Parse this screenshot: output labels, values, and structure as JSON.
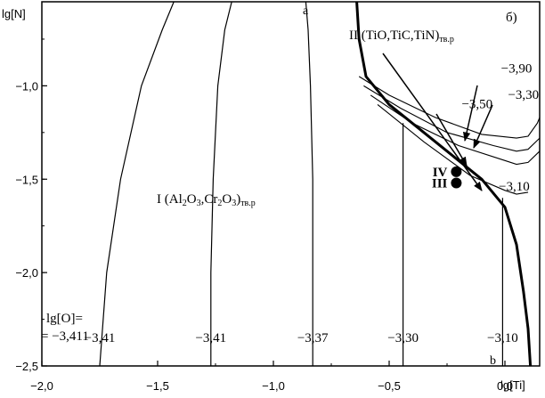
{
  "axes": {
    "x_label": "lg[Ti]",
    "y_label": "lg[N]",
    "xlim": [
      -2.0,
      0.15
    ],
    "ylim": [
      -2.5,
      -0.55
    ],
    "x_ticks": [
      -2.0,
      -1.5,
      -1.0,
      -0.5,
      0.0
    ],
    "x_tick_labels": [
      "−2,0",
      "−1,5",
      "−1,0",
      "−0,5",
      "0,0"
    ],
    "y_ticks": [
      -1.0,
      -1.5,
      -2.0,
      -2.5
    ],
    "y_tick_labels": [
      "−1,0",
      "−1,5",
      "−2,0",
      "−2,5"
    ]
  },
  "panel_label": "б)",
  "boundary": {
    "name": "a–b",
    "top_label": "a",
    "bottom_label": "b",
    "points": [
      [
        -0.64,
        -0.55
      ],
      [
        -0.63,
        -0.75
      ],
      [
        -0.6,
        -0.95
      ],
      [
        -0.5,
        -1.1
      ],
      [
        -0.3,
        -1.3
      ],
      [
        -0.1,
        -1.5
      ],
      [
        0.0,
        -1.65
      ],
      [
        0.05,
        -1.85
      ],
      [
        0.08,
        -2.1
      ],
      [
        0.1,
        -2.3
      ],
      [
        0.11,
        -2.5
      ]
    ]
  },
  "region_I": {
    "label_prefix": "I (Al",
    "sub1": "2",
    "mid1": "O",
    "sub2": "3",
    "mid2": ",Cr",
    "sub3": "2",
    "mid3": "O",
    "sub4": "3",
    "mid4": ")",
    "sub5": "тв.р"
  },
  "region_II": {
    "label": "II (TiO,TiC,TiN)",
    "sub": "тв.р"
  },
  "points": [
    {
      "label": "IV",
      "x": -0.21,
      "y": -1.46
    },
    {
      "label": "III",
      "x": -0.21,
      "y": -1.52
    }
  ],
  "lg_O_label_1": "lg[O]=",
  "lg_O_label_2": "= −3,411",
  "oxygen_isolines_I": [
    {
      "label": "−3,41",
      "points": [
        [
          -1.75,
          -2.5
        ],
        [
          -1.72,
          -2.0
        ],
        [
          -1.66,
          -1.5
        ],
        [
          -1.57,
          -1.0
        ],
        [
          -1.48,
          -0.7
        ],
        [
          -1.43,
          -0.55
        ]
      ]
    },
    {
      "label": "−3,41",
      "points": [
        [
          -1.27,
          -2.5
        ],
        [
          -1.27,
          -2.0
        ],
        [
          -1.26,
          -1.5
        ],
        [
          -1.24,
          -1.0
        ],
        [
          -1.21,
          -0.7
        ],
        [
          -1.18,
          -0.55
        ]
      ]
    },
    {
      "label": "−3,37",
      "points": [
        [
          -0.83,
          -2.5
        ],
        [
          -0.83,
          -2.0
        ],
        [
          -0.83,
          -1.5
        ],
        [
          -0.84,
          -1.0
        ],
        [
          -0.85,
          -0.7
        ],
        [
          -0.86,
          -0.55
        ]
      ]
    },
    {
      "label": "−3,30",
      "points": [
        [
          -0.44,
          -2.5
        ],
        [
          -0.44,
          -1.2
        ]
      ]
    },
    {
      "label": "−3,10",
      "points": [
        [
          -0.01,
          -2.5
        ],
        [
          -0.01,
          -1.6
        ]
      ]
    }
  ],
  "oxygen_isolines_II": [
    {
      "label": "−3,90",
      "points": [
        [
          -0.63,
          -0.95
        ],
        [
          -0.5,
          -1.05
        ],
        [
          -0.3,
          -1.17
        ],
        [
          -0.1,
          -1.26
        ],
        [
          0.05,
          -1.28
        ],
        [
          0.1,
          -1.27
        ],
        [
          0.14,
          -1.2
        ],
        [
          0.15,
          -1.17
        ]
      ]
    },
    {
      "label": "−3,30",
      "points": [
        [
          -0.61,
          -1.0
        ],
        [
          -0.45,
          -1.12
        ],
        [
          -0.25,
          -1.25
        ],
        [
          -0.05,
          -1.32
        ],
        [
          0.05,
          -1.35
        ],
        [
          0.1,
          -1.34
        ],
        [
          0.15,
          -1.28
        ]
      ]
    },
    {
      "label": "−3,50",
      "points": [
        [
          -0.58,
          -1.05
        ],
        [
          -0.4,
          -1.2
        ],
        [
          -0.2,
          -1.32
        ],
        [
          0.0,
          -1.4
        ],
        [
          0.05,
          -1.42
        ],
        [
          0.1,
          -1.41
        ],
        [
          0.15,
          -1.35
        ]
      ]
    },
    {
      "label": "−3,10",
      "points": [
        [
          -0.55,
          -1.1
        ],
        [
          -0.35,
          -1.3
        ],
        [
          -0.15,
          -1.48
        ],
        [
          0.0,
          -1.56
        ],
        [
          0.05,
          -1.58
        ],
        [
          0.1,
          -1.57
        ]
      ]
    }
  ],
  "isoline_labels_II": [
    {
      "label": "−3,90",
      "x": 0.05,
      "y": -0.93
    },
    {
      "label": "−3,30",
      "x": 0.08,
      "y": -1.07
    },
    {
      "label": "−3,50",
      "x": -0.12,
      "y": -1.12
    },
    {
      "label": "−3,10",
      "x": 0.04,
      "y": -1.56
    }
  ]
}
